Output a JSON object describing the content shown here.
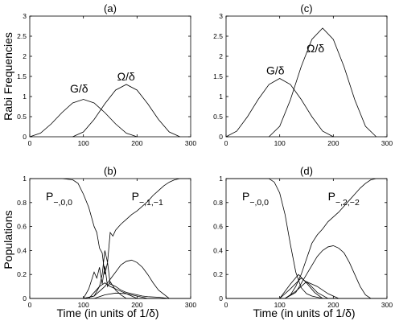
{
  "figure": {
    "ylabel_top": "Rabi Frequencies",
    "ylabel_bottom": "Populations",
    "xlabel": "Time (in units of 1/δ)"
  },
  "chart_data": [
    {
      "id": "a",
      "label": "(a)",
      "type": "line",
      "xlim": [
        0,
        300
      ],
      "ylim": [
        0,
        3
      ],
      "xticks": [
        "0",
        "100",
        "200",
        "300"
      ],
      "yticks": [
        "0",
        "0.5",
        "1",
        "1.5",
        "2",
        "2.5",
        "3"
      ],
      "series": [
        {
          "name": "G/δ",
          "x": [
            0,
            20,
            40,
            60,
            80,
            100,
            120,
            140,
            160,
            180,
            200
          ],
          "y": [
            0,
            0.09,
            0.32,
            0.6,
            0.84,
            0.93,
            0.84,
            0.6,
            0.32,
            0.09,
            0
          ]
        },
        {
          "name": "Ω/δ",
          "x": [
            80,
            100,
            120,
            140,
            160,
            180,
            200,
            220,
            240,
            260,
            280
          ],
          "y": [
            0,
            0.12,
            0.43,
            0.82,
            1.16,
            1.3,
            1.16,
            0.82,
            0.43,
            0.12,
            0
          ]
        }
      ],
      "annotations": [
        {
          "text": "G/δ",
          "x": 75,
          "y": 1.1
        },
        {
          "text": "Ω/δ",
          "x": 163,
          "y": 1.4
        }
      ]
    },
    {
      "id": "c",
      "label": "(c)",
      "type": "line",
      "xlim": [
        0,
        300
      ],
      "ylim": [
        0,
        3
      ],
      "xticks": [
        "0",
        "100",
        "200",
        "300"
      ],
      "yticks": [
        "0",
        "0.5",
        "1",
        "1.5",
        "2",
        "2.5",
        "3"
      ],
      "series": [
        {
          "name": "G/δ",
          "x": [
            0,
            20,
            40,
            60,
            80,
            100,
            120,
            140,
            160,
            180,
            200
          ],
          "y": [
            0,
            0.14,
            0.5,
            0.93,
            1.3,
            1.45,
            1.3,
            0.93,
            0.5,
            0.14,
            0
          ]
        },
        {
          "name": "Ω/δ",
          "x": [
            80,
            100,
            120,
            140,
            160,
            180,
            200,
            220,
            240,
            260,
            280
          ],
          "y": [
            0,
            0.26,
            0.92,
            1.74,
            2.42,
            2.7,
            2.42,
            1.74,
            0.92,
            0.26,
            0
          ]
        }
      ],
      "annotations": [
        {
          "text": "G/δ",
          "x": 75,
          "y": 1.55
        },
        {
          "text": "Ω/δ",
          "x": 150,
          "y": 2.1
        }
      ]
    },
    {
      "id": "b",
      "label": "(b)",
      "type": "line",
      "xlim": [
        0,
        300
      ],
      "ylim": [
        0,
        1
      ],
      "xticks": [
        "0",
        "100",
        "200",
        "300"
      ],
      "yticks": [
        "0",
        "0.2",
        "0.4",
        "0.6",
        "0.8",
        "1"
      ],
      "series": [
        {
          "x": [
            0,
            60,
            80,
            90,
            100,
            110,
            120,
            125,
            130,
            135,
            140,
            145,
            150,
            160,
            170,
            180,
            190,
            200,
            210,
            220,
            240,
            260,
            280,
            300
          ],
          "y": [
            1,
            1,
            0.99,
            0.96,
            0.87,
            0.76,
            0.6,
            0.55,
            0.42,
            0.38,
            0.2,
            0.3,
            0.12,
            0.1,
            0.07,
            0.05,
            0.04,
            0.03,
            0.02,
            0.015,
            0.01,
            0,
            0,
            0
          ]
        },
        {
          "x": [
            0,
            100,
            120,
            130,
            135,
            140,
            145,
            150,
            155,
            160,
            170,
            180,
            190,
            200,
            210,
            220,
            230,
            240,
            250,
            260,
            270,
            280,
            300
          ],
          "y": [
            0,
            0,
            0.02,
            0.1,
            0.2,
            0.4,
            0.3,
            0.55,
            0.52,
            0.57,
            0.62,
            0.66,
            0.7,
            0.73,
            0.77,
            0.81,
            0.86,
            0.9,
            0.94,
            0.97,
            0.99,
            1,
            1
          ]
        },
        {
          "x": [
            0,
            100,
            120,
            140,
            160,
            170,
            180,
            190,
            200,
            210,
            220,
            230,
            240,
            260,
            300
          ],
          "y": [
            0,
            0,
            0.02,
            0.1,
            0.22,
            0.28,
            0.31,
            0.32,
            0.3,
            0.26,
            0.2,
            0.13,
            0.07,
            0,
            0
          ]
        },
        {
          "x": [
            0,
            100,
            110,
            120,
            125,
            130,
            135,
            140,
            145,
            150,
            160,
            170,
            180,
            300
          ],
          "y": [
            0,
            0,
            0.08,
            0.22,
            0.17,
            0.26,
            0.12,
            0.27,
            0.1,
            0.14,
            0.07,
            0.03,
            0,
            0
          ]
        },
        {
          "x": [
            0,
            110,
            120,
            130,
            140,
            150,
            160,
            170,
            180,
            190,
            200,
            300
          ],
          "y": [
            0,
            0,
            0.05,
            0.1,
            0.13,
            0.1,
            0.08,
            0.06,
            0.04,
            0.02,
            0,
            0
          ]
        },
        {
          "x": [
            0,
            120,
            140,
            160,
            180,
            200,
            220,
            300
          ],
          "y": [
            0,
            0,
            0.03,
            0.045,
            0.04,
            0.02,
            0,
            0
          ]
        }
      ],
      "annotations": [
        {
          "text": "P",
          "sub": "−,0,0",
          "x": 30,
          "y": 0.82
        },
        {
          "text": "P",
          "sub": "−,1,−1",
          "x": 190,
          "y": 0.82
        }
      ]
    },
    {
      "id": "d",
      "label": "(d)",
      "type": "line",
      "xlim": [
        0,
        300
      ],
      "ylim": [
        0,
        1
      ],
      "xticks": [
        "0",
        "100",
        "200",
        "300"
      ],
      "yticks": [
        "0",
        "0.2",
        "0.4",
        "0.6",
        "0.8",
        "1"
      ],
      "series": [
        {
          "x": [
            0,
            80,
            90,
            100,
            110,
            120,
            130,
            140,
            150,
            160,
            170,
            180,
            200,
            300
          ],
          "y": [
            1,
            1,
            0.97,
            0.88,
            0.7,
            0.45,
            0.22,
            0.09,
            0.04,
            0.02,
            0.01,
            0,
            0,
            0
          ]
        },
        {
          "x": [
            0,
            110,
            120,
            130,
            140,
            150,
            160,
            170,
            180,
            190,
            200,
            210,
            220,
            230,
            240,
            250,
            260,
            270,
            280,
            300
          ],
          "y": [
            0,
            0,
            0.03,
            0.1,
            0.2,
            0.33,
            0.46,
            0.53,
            0.58,
            0.64,
            0.68,
            0.72,
            0.77,
            0.82,
            0.87,
            0.92,
            0.96,
            0.99,
            1,
            1
          ]
        },
        {
          "x": [
            0,
            110,
            130,
            150,
            170,
            180,
            190,
            200,
            210,
            220,
            230,
            240,
            250,
            260,
            270,
            300
          ],
          "y": [
            0,
            0,
            0.05,
            0.2,
            0.35,
            0.4,
            0.43,
            0.44,
            0.42,
            0.38,
            0.3,
            0.2,
            0.1,
            0.03,
            0,
            0
          ]
        },
        {
          "x": [
            0,
            100,
            120,
            135,
            150,
            165,
            180,
            300
          ],
          "y": [
            0,
            0,
            0.12,
            0.2,
            0.13,
            0.05,
            0,
            0
          ]
        },
        {
          "x": [
            0,
            100,
            120,
            140,
            155,
            170,
            190,
            300
          ],
          "y": [
            0,
            0,
            0.08,
            0.17,
            0.12,
            0.05,
            0,
            0
          ]
        },
        {
          "x": [
            0,
            110,
            130,
            150,
            170,
            190,
            210,
            300
          ],
          "y": [
            0,
            0,
            0.06,
            0.14,
            0.1,
            0.04,
            0,
            0
          ]
        }
      ],
      "annotations": [
        {
          "text": "P",
          "sub": "−,0,0",
          "x": 30,
          "y": 0.82
        },
        {
          "text": "P",
          "sub": "−,2,−2",
          "x": 190,
          "y": 0.82
        }
      ]
    }
  ]
}
